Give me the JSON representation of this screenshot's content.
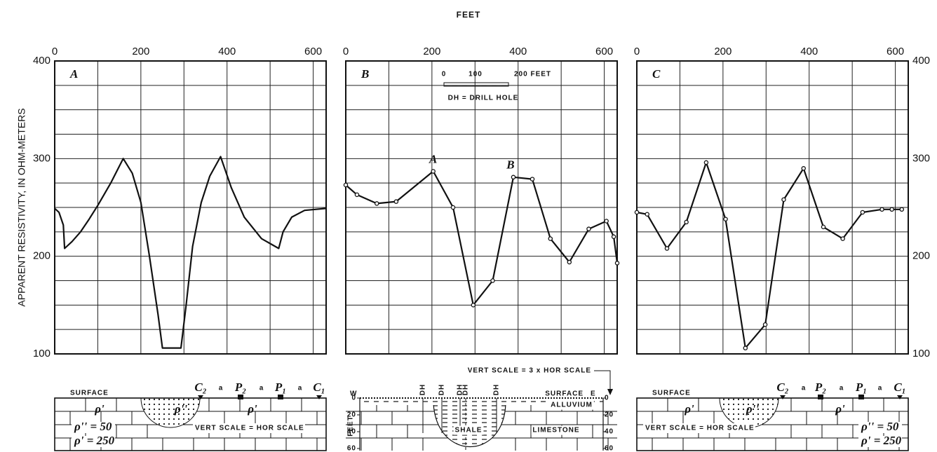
{
  "title": "FEET",
  "y_label": "APPARENT RESISTIVITY, IN OHM-METERS",
  "chart_data": [
    {
      "type": "line",
      "panel": "A",
      "markers": false,
      "color": "#111111",
      "x": [
        0,
        10,
        20,
        23,
        40,
        60,
        80,
        100,
        130,
        159,
        180,
        200,
        220,
        240,
        250,
        270,
        293,
        305,
        320,
        340,
        360,
        385,
        410,
        440,
        480,
        520,
        530,
        550,
        580,
        630
      ],
      "values": [
        249,
        245,
        232,
        208,
        215,
        225,
        238,
        252,
        275,
        300,
        285,
        255,
        200,
        140,
        106,
        106,
        106,
        150,
        210,
        255,
        282,
        302,
        270,
        240,
        218,
        208,
        225,
        240,
        247,
        249
      ],
      "xlim": [
        0,
        630
      ],
      "ylim": [
        100,
        400
      ],
      "xticks": [
        0,
        200,
        400,
        600
      ],
      "yticks": [
        100,
        200,
        300,
        400
      ],
      "minor_xticks": [
        100,
        300,
        500
      ],
      "minor_yticks": [
        125,
        150,
        175,
        225,
        250,
        275,
        325,
        350,
        375
      ],
      "ytick_labels": "left",
      "grid": true
    },
    {
      "type": "line",
      "panel": "B",
      "markers": true,
      "color": "#111111",
      "x": [
        0,
        26,
        72,
        117,
        203,
        249,
        296,
        341,
        389,
        433,
        475,
        519,
        564,
        605,
        622,
        630
      ],
      "values": [
        273,
        263,
        254,
        256,
        287,
        250,
        150,
        175,
        281,
        279,
        218,
        194,
        228,
        236,
        220,
        193
      ],
      "xlim": [
        0,
        630
      ],
      "ylim": [
        100,
        400
      ],
      "xticks": [
        0,
        200,
        400,
        600
      ],
      "yticks": [
        100,
        200,
        300,
        400
      ],
      "minor_xticks": [
        100,
        300,
        500
      ],
      "minor_yticks": [
        125,
        150,
        175,
        225,
        250,
        275,
        325,
        350,
        375
      ],
      "ytick_labels": "none",
      "grid": true,
      "annotations": [
        "A",
        "B"
      ],
      "scale_bar_labels": [
        "0",
        "100",
        "200 FEET"
      ],
      "note": "DH = DRILL HOLE",
      "scale_note": "VERT SCALE = 3 x HOR SCALE"
    },
    {
      "type": "line",
      "panel": "C",
      "markers": true,
      "color": "#111111",
      "x": [
        0,
        24,
        70,
        115,
        161,
        206,
        252,
        298,
        341,
        387,
        433,
        478,
        524,
        569,
        592,
        615
      ],
      "values": [
        245,
        243,
        208,
        235,
        296,
        238,
        106,
        130,
        258,
        290,
        230,
        218,
        245,
        248,
        248,
        248
      ],
      "xlim": [
        0,
        630
      ],
      "ylim": [
        100,
        400
      ],
      "xticks": [
        0,
        200,
        400,
        600
      ],
      "yticks": [
        100,
        200,
        300,
        400
      ],
      "minor_xticks": [
        100,
        300,
        500
      ],
      "minor_yticks": [
        125,
        150,
        175,
        225,
        250,
        275,
        325,
        350,
        375
      ],
      "ytick_labels": "right",
      "grid": true
    }
  ],
  "sections": [
    {
      "surface": "SURFACE",
      "electrodes": [
        "C₂",
        "a",
        "P₂",
        "a",
        "P₁",
        "a",
        "C₁"
      ],
      "media": [
        "ρ'",
        "ρ''",
        "ρ'"
      ],
      "legend": [
        "ρ'' = 50",
        "ρ' = 250"
      ],
      "scale_note": "VERT SCALE = HOR SCALE"
    },
    {
      "west": "W",
      "east": "E",
      "surface": "SURFACE",
      "drill_holes": [
        "DH",
        "DH",
        "DH",
        "DH",
        "DH"
      ],
      "layers": [
        "ALLUVIUM",
        "SHALE",
        "LIMESTONE"
      ],
      "depth_label": "FEET",
      "depth_lim": [
        0,
        60
      ],
      "depth_ticks": [
        0,
        20,
        40,
        60
      ]
    },
    {
      "surface": "SURFACE",
      "electrodes": [
        "C₂",
        "a",
        "P₂",
        "a",
        "P₁",
        "a",
        "C₁"
      ],
      "media": [
        "ρ'",
        "ρ''",
        "ρ'"
      ],
      "legend": [
        "ρ'' = 50",
        "ρ' = 250"
      ],
      "scale_note": "VERT SCALE = HOR SCALE"
    }
  ]
}
